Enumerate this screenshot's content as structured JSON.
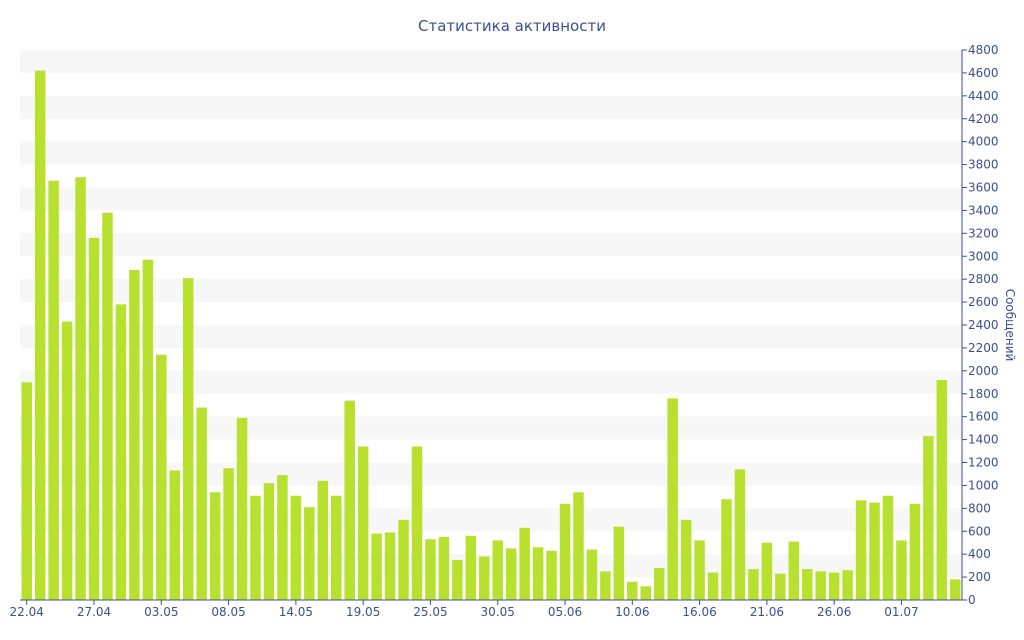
{
  "chart_data": {
    "type": "bar",
    "title": "Статистика активности",
    "ylabel": "Сообщений",
    "xlabel": "",
    "ylim": [
      0,
      4800
    ],
    "y_tick_step": 200,
    "grid": "alternating horizontal bands",
    "y_axis_side": "right",
    "bar_color": "#b8e12f",
    "x_tick_labels": [
      {
        "index": 0,
        "label": "22.04"
      },
      {
        "index": 5,
        "label": "27.04"
      },
      {
        "index": 10,
        "label": "03.05"
      },
      {
        "index": 15,
        "label": "08.05"
      },
      {
        "index": 20,
        "label": "14.05"
      },
      {
        "index": 25,
        "label": "19.05"
      },
      {
        "index": 30,
        "label": "25.05"
      },
      {
        "index": 35,
        "label": "30.05"
      },
      {
        "index": 40,
        "label": "05.06"
      },
      {
        "index": 45,
        "label": "10.06"
      },
      {
        "index": 50,
        "label": "16.06"
      },
      {
        "index": 55,
        "label": "21.06"
      },
      {
        "index": 60,
        "label": "26.06"
      },
      {
        "index": 65,
        "label": "01.07"
      }
    ],
    "values": [
      1900,
      4620,
      3660,
      2430,
      3690,
      3160,
      3380,
      2580,
      2880,
      2970,
      2140,
      1130,
      2810,
      1680,
      940,
      1150,
      1590,
      910,
      1020,
      1090,
      910,
      810,
      1040,
      910,
      1740,
      1340,
      580,
      590,
      700,
      1340,
      530,
      550,
      350,
      560,
      380,
      520,
      450,
      630,
      460,
      430,
      840,
      940,
      440,
      250,
      640,
      160,
      120,
      280,
      1760,
      700,
      520,
      240,
      880,
      1140,
      270,
      500,
      230,
      510,
      270,
      250,
      240,
      260,
      870,
      850,
      910,
      520,
      840,
      1430,
      1920,
      180
    ]
  }
}
